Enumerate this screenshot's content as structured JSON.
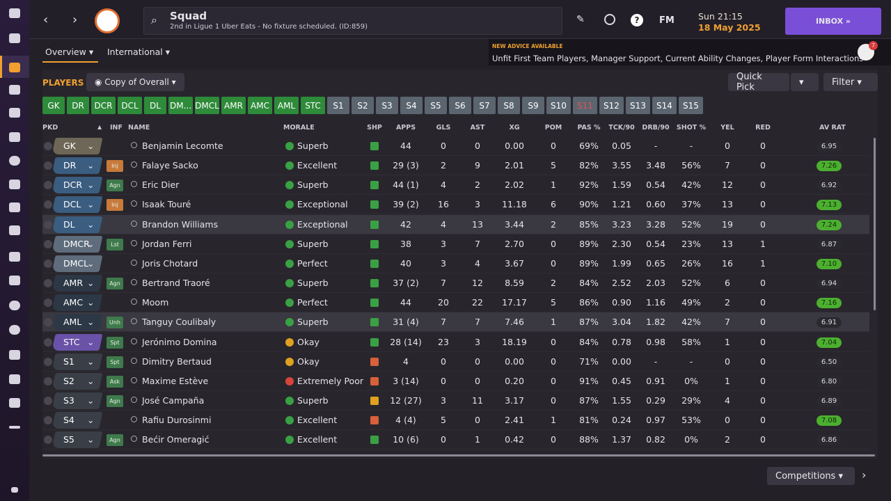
{
  "header": {
    "title": "Squad",
    "subtitle": "2nd in Ligue 1 Uber Eats - No fixture scheduled. (ID:859)",
    "fm": "FM",
    "time": "Sun 21:15",
    "date": "18 May 2025",
    "inbox": "INBOX"
  },
  "tabs": [
    "Overview",
    "International"
  ],
  "advice": {
    "label": "NEW ADVICE AVAILABLE",
    "text": "Unfit First Team Players, Manager Support, Current Ability Changes, Player Form Interactions",
    "badge": "7"
  },
  "toolbar": {
    "players": "PLAYERS",
    "view": "Copy of Overall",
    "quick_pick": "Quick Pick",
    "filter": "Filter"
  },
  "positions": [
    {
      "label": "GK",
      "color": "#2e8b3a"
    },
    {
      "label": "DR",
      "color": "#2e8b3a"
    },
    {
      "label": "DCR",
      "color": "#2e8b3a"
    },
    {
      "label": "DCL",
      "color": "#2e8b3a"
    },
    {
      "label": "DL",
      "color": "#2e8b3a"
    },
    {
      "label": "DM...",
      "color": "#2e8b3a"
    },
    {
      "label": "DMCL",
      "color": "#2e8b3a"
    },
    {
      "label": "AMR",
      "color": "#2e8b3a"
    },
    {
      "label": "AMC",
      "color": "#2e8b3a"
    },
    {
      "label": "AML",
      "color": "#2e8b3a"
    },
    {
      "label": "STC",
      "color": "#2e8b3a"
    },
    {
      "label": "S1",
      "color": "#5b6570"
    },
    {
      "label": "S2",
      "color": "#5b6570"
    },
    {
      "label": "S3",
      "color": "#5b6570"
    },
    {
      "label": "S4",
      "color": "#5b6570"
    },
    {
      "label": "S5",
      "color": "#5b6570"
    },
    {
      "label": "S6",
      "color": "#5b6570"
    },
    {
      "label": "S7",
      "color": "#5b6570"
    },
    {
      "label": "S8",
      "color": "#5b6570"
    },
    {
      "label": "S9",
      "color": "#5b6570"
    },
    {
      "label": "S10",
      "color": "#5b6570"
    },
    {
      "label": "S11",
      "color": "#5b6570",
      "text_color": "#e05555"
    },
    {
      "label": "S12",
      "color": "#5b6570"
    },
    {
      "label": "S13",
      "color": "#5b6570"
    },
    {
      "label": "S14",
      "color": "#5b6570"
    },
    {
      "label": "S15",
      "color": "#5b6570"
    }
  ],
  "table": {
    "columns": [
      "PKD",
      "INF",
      "NAME",
      "MORALE",
      "SHP",
      "APPS",
      "GLS",
      "AST",
      "XG",
      "POM",
      "PAS %",
      "TCK/90",
      "DRB/90",
      "SHOT %",
      "YEL",
      "RED",
      "AV RAT"
    ],
    "rows": [
      {
        "pos_color": "#6e6656",
        "morale_color": "#3aa045",
        "shp_color": "#3aa045",
        "rat_high": false,
        "cells": [
          "GK",
          null,
          "Benjamin Lecomte",
          "Superb",
          "44",
          "0",
          "0",
          "0.00",
          "0",
          "69%",
          "0.05",
          "-",
          "-",
          "0",
          "0",
          "6.95"
        ]
      },
      {
        "pos_color": "#3a5d80",
        "morale_color": "#3aa045",
        "shp_color": "#3aa045",
        "rat_high": true,
        "cells": [
          "DR",
          "Inj",
          "Falaye Sacko",
          "Excellent",
          "29 (3)",
          "2",
          "9",
          "2.01",
          "5",
          "82%",
          "3.55",
          "3.48",
          "56%",
          "7",
          "0",
          "7.26"
        ]
      },
      {
        "pos_color": "#3a5d80",
        "morale_color": "#3aa045",
        "shp_color": "#3aa045",
        "rat_high": false,
        "cells": [
          "DCR",
          "Agn",
          "Eric Dier",
          "Superb",
          "44 (1)",
          "4",
          "2",
          "2.02",
          "1",
          "92%",
          "1.59",
          "0.54",
          "42%",
          "12",
          "0",
          "6.92"
        ]
      },
      {
        "pos_color": "#3a5d80",
        "morale_color": "#3aa045",
        "shp_color": "#3aa045",
        "rat_high": true,
        "cells": [
          "DCL",
          "Inj",
          "Isaak Touré",
          "Exceptional",
          "39 (2)",
          "16",
          "3",
          "11.18",
          "6",
          "90%",
          "1.21",
          "0.60",
          "37%",
          "13",
          "0",
          "7.13"
        ]
      },
      {
        "pos_color": "#3a5d80",
        "morale_color": "#3aa045",
        "shp_color": "#3aa045",
        "rat_high": true,
        "cells": [
          "DL",
          null,
          "Brandon Williams",
          "Exceptional",
          "42",
          "4",
          "13",
          "3.44",
          "2",
          "85%",
          "3.23",
          "3.28",
          "52%",
          "19",
          "0",
          "7.24"
        ]
      },
      {
        "pos_color": "#5e6c7c",
        "morale_color": "#3aa045",
        "shp_color": "#3aa045",
        "rat_high": false,
        "cells": [
          "DMCR",
          "Lst",
          "Jordan Ferri",
          "Superb",
          "38",
          "3",
          "7",
          "2.70",
          "0",
          "89%",
          "2.30",
          "0.54",
          "23%",
          "13",
          "1",
          "6.87"
        ]
      },
      {
        "pos_color": "#5e6c7c",
        "morale_color": "#3aa045",
        "shp_color": "#3aa045",
        "rat_high": true,
        "cells": [
          "DMCL",
          null,
          "Joris Chotard",
          "Perfect",
          "40",
          "3",
          "4",
          "3.67",
          "0",
          "89%",
          "1.99",
          "0.65",
          "26%",
          "16",
          "1",
          "7.10"
        ]
      },
      {
        "pos_color": "#2d3846",
        "morale_color": "#3aa045",
        "shp_color": "#3aa045",
        "rat_high": false,
        "cells": [
          "AMR",
          "Agn",
          "Bertrand Traoré",
          "Superb",
          "37 (2)",
          "7",
          "12",
          "8.59",
          "2",
          "84%",
          "2.52",
          "2.03",
          "52%",
          "6",
          "0",
          "6.94"
        ]
      },
      {
        "pos_color": "#2d3846",
        "morale_color": "#3aa045",
        "shp_color": "#3aa045",
        "rat_high": true,
        "cells": [
          "AMC",
          null,
          "Moom",
          "Perfect",
          "44",
          "20",
          "22",
          "17.17",
          "5",
          "86%",
          "0.90",
          "1.16",
          "49%",
          "2",
          "0",
          "7.16"
        ]
      },
      {
        "pos_color": "#2d3846",
        "morale_color": "#3aa045",
        "shp_color": "#3aa045",
        "rat_high": false,
        "cells": [
          "AML",
          "Unh",
          "Tanguy Coulibaly",
          "Superb",
          "31 (4)",
          "7",
          "7",
          "7.46",
          "1",
          "87%",
          "3.04",
          "1.82",
          "42%",
          "7",
          "0",
          "6.91"
        ]
      },
      {
        "pos_color": "#6a52a8",
        "morale_color": "#e0a020",
        "shp_color": "#3aa045",
        "rat_high": true,
        "cells": [
          "STC",
          "Spt",
          "Jerónimo Domina",
          "Okay",
          "28 (14)",
          "23",
          "3",
          "18.19",
          "0",
          "84%",
          "0.78",
          "0.98",
          "58%",
          "1",
          "0",
          "7.04"
        ]
      },
      {
        "pos_color": "#393e47",
        "morale_color": "#e0a020",
        "shp_color": "#d8603a",
        "rat_high": false,
        "cells": [
          "S1",
          "Spt",
          "Dimitry Bertaud",
          "Okay",
          "4",
          "0",
          "0",
          "0.00",
          "0",
          "71%",
          "0.00",
          "-",
          "-",
          "0",
          "0",
          "6.50"
        ]
      },
      {
        "pos_color": "#393e47",
        "morale_color": "#d8443a",
        "shp_color": "#d8603a",
        "rat_high": false,
        "cells": [
          "S2",
          "Ask",
          "Maxime Estève",
          "Extremely Poor",
          "3 (14)",
          "0",
          "0",
          "0.20",
          "0",
          "91%",
          "0.45",
          "0.91",
          "0%",
          "1",
          "0",
          "6.80"
        ]
      },
      {
        "pos_color": "#393e47",
        "morale_color": "#3aa045",
        "shp_color": "#e0a020",
        "rat_high": false,
        "cells": [
          "S3",
          "Agn",
          "José Campaña",
          "Superb",
          "12 (27)",
          "3",
          "11",
          "3.17",
          "0",
          "87%",
          "1.55",
          "0.29",
          "29%",
          "4",
          "0",
          "6.89"
        ]
      },
      {
        "pos_color": "#393e47",
        "morale_color": "#3aa045",
        "shp_color": "#d8603a",
        "rat_high": true,
        "cells": [
          "S4",
          null,
          "Rafiu Durosinmi",
          "Excellent",
          "4 (4)",
          "5",
          "0",
          "2.41",
          "1",
          "81%",
          "0.24",
          "0.97",
          "53%",
          "0",
          "0",
          "7.08"
        ]
      },
      {
        "pos_color": "#393e47",
        "morale_color": "#3aa045",
        "shp_color": "#3aa045",
        "rat_high": false,
        "cells": [
          "S5",
          "Agn",
          "Bećir Omeragić",
          "Excellent",
          "10 (6)",
          "0",
          "1",
          "0.42",
          "0",
          "88%",
          "1.37",
          "0.82",
          "0%",
          "2",
          "0",
          "6.86"
        ]
      }
    ]
  },
  "footer": {
    "competitions": "Competitions"
  }
}
